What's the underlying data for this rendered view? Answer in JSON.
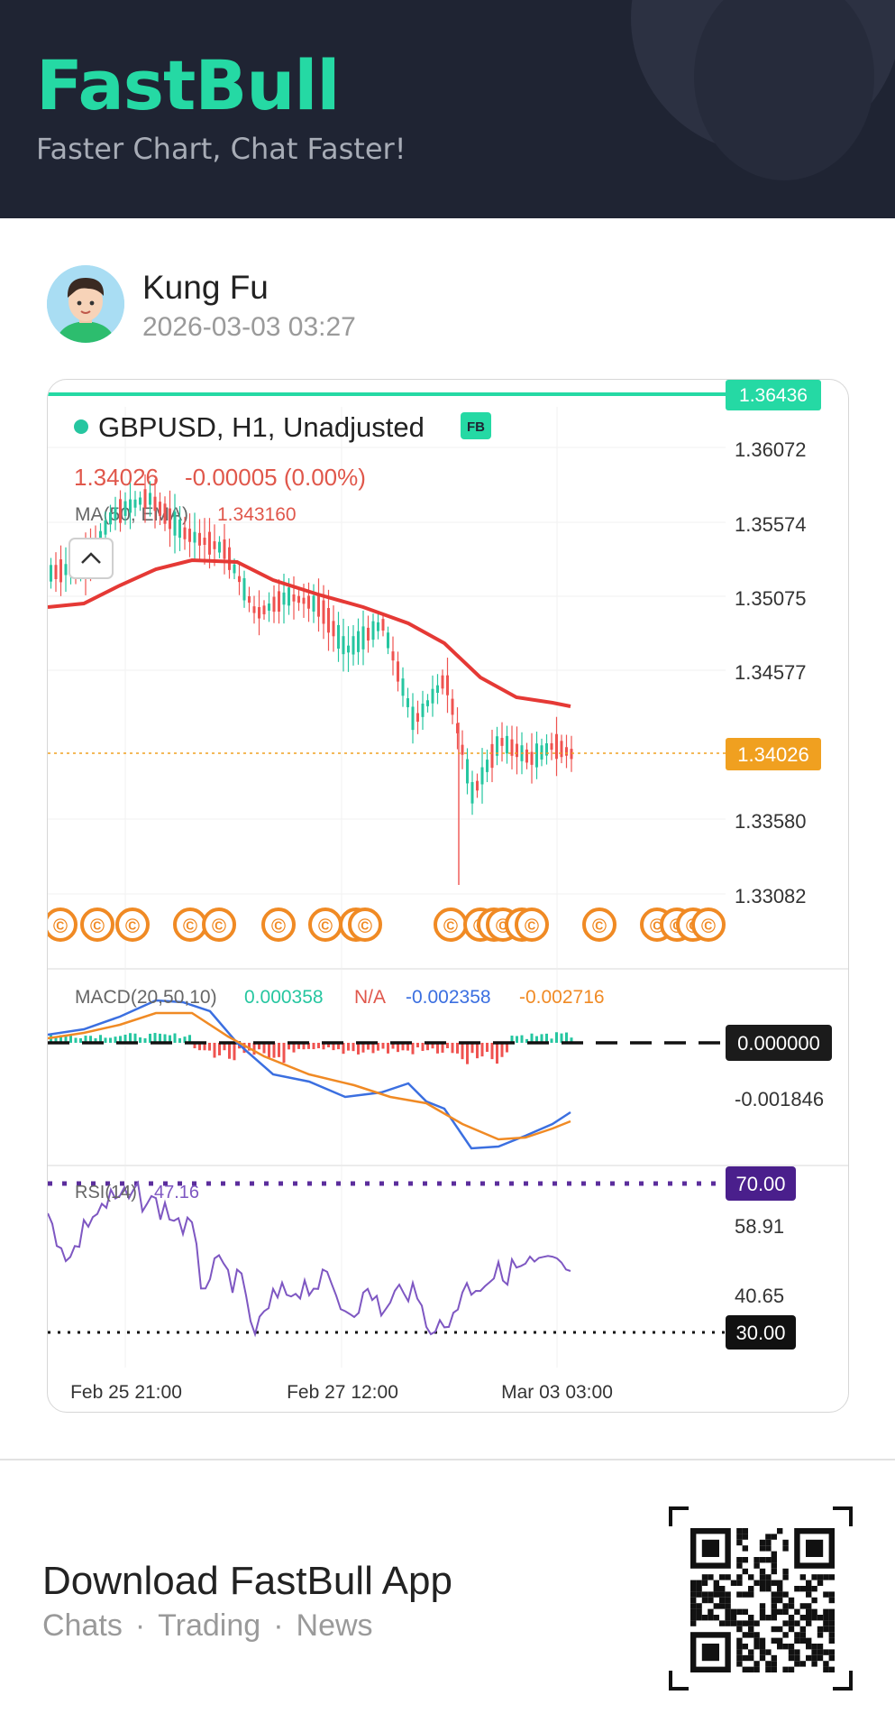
{
  "header": {
    "brand": "FastBull",
    "tagline": "Faster Chart, Chat Faster!"
  },
  "user": {
    "name": "Kung Fu",
    "timestamp": "2026-03-03 03:27"
  },
  "chart": {
    "title": "GBPUSD, H1, Unadjusted",
    "badge": "FB",
    "price": "1.34026",
    "change": "-0.00005 (0.00%)",
    "ma_label": "MA(50, EMA)",
    "ma_value": "1.343160",
    "high_tag": "1.36436",
    "current_tag": "1.34026",
    "price_ticks": [
      "1.36072",
      "1.35574",
      "1.35075",
      "1.34577",
      "1.33580",
      "1.33082"
    ],
    "macd_label": "MACD(20,50,10)",
    "macd_values": [
      "0.000358",
      "N/A",
      "-0.002358",
      "-0.002716"
    ],
    "macd_zero_tag": "0.000000",
    "macd_tick": "-0.001846",
    "rsi_label": "RSI(14)",
    "rsi_value": "47.16",
    "rsi_upper": "70.00",
    "rsi_lower": "30.00",
    "rsi_ticks": [
      "58.91",
      "40.65"
    ],
    "time_labels": [
      "Feb 25 21:00",
      "Feb 27 12:00",
      "Mar 03 03:00"
    ],
    "colors": {
      "up": "#26c6a0",
      "down": "#ef5350",
      "ma": "#e53935",
      "accent": "#25d9a4",
      "current": "#f0a020",
      "rsi": "#7e57c2"
    }
  },
  "footer": {
    "title": "Download FastBull App",
    "links": [
      "Chats",
      "Trading",
      "News"
    ],
    "separator": "·"
  }
}
